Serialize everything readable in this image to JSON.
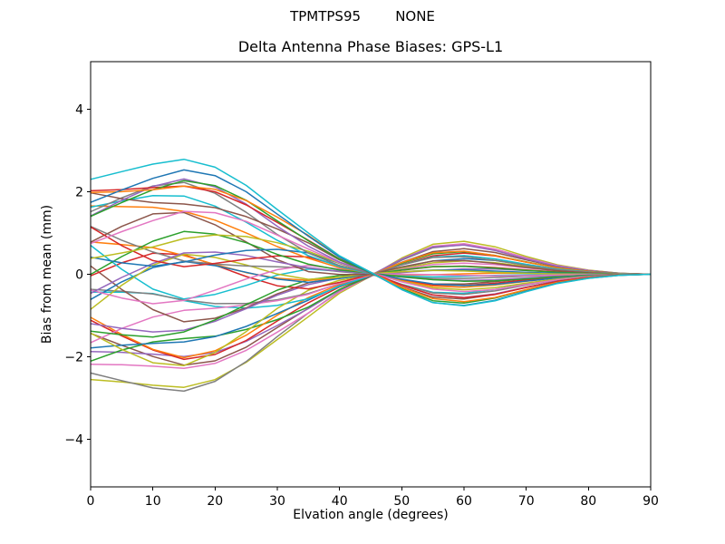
{
  "figure": {
    "background": "#ffffff",
    "axis_color": "#000000"
  },
  "chart_data": {
    "type": "line",
    "suptitle": "TPMTPS95        NONE",
    "title": "Delta Antenna Phase Biases: GPS-L1",
    "xlabel": "Elvation angle (degrees)",
    "ylabel": "Bias from mean (mm)",
    "xlim": [
      0,
      90
    ],
    "ylim": [
      -5.15,
      5.15
    ],
    "xticks": [
      0,
      10,
      20,
      30,
      40,
      50,
      60,
      70,
      80,
      90
    ],
    "xtick_labels": [
      "0",
      "10",
      "20",
      "30",
      "40",
      "50",
      "60",
      "70",
      "80",
      "90"
    ],
    "yticks": [
      -4,
      -2,
      0,
      2,
      4
    ],
    "ytick_labels": [
      "−4",
      "−2",
      "0",
      "2",
      "4"
    ],
    "grid": false,
    "legend": "none",
    "line_width": 1.5,
    "palette": [
      "#1f77b4",
      "#ff7f0e",
      "#2ca02c",
      "#d62728",
      "#9467bd",
      "#8c564b",
      "#e377c2",
      "#7f7f7f",
      "#bcbd22",
      "#17becf"
    ],
    "x": [
      0,
      5,
      10,
      15,
      20,
      25,
      30,
      35,
      40,
      45,
      50,
      55,
      60,
      65,
      70,
      75,
      80,
      85,
      90
    ],
    "value_formula": "values[j] = a*base[j] + n1*shape_u[j] + n2*shape_v[j] + n3*shape_w[j]; each of ~40 antenna bias curves peaks near 15 deg, crosses zero near 43 deg, has an opposite-sign bump near 55-60 deg and converges to 0 at 90 deg",
    "base": [
      0.84,
      0.92,
      1.0,
      1.06,
      1.0,
      0.84,
      0.62,
      0.4,
      0.18,
      0.02,
      -0.15,
      -0.28,
      -0.31,
      -0.26,
      -0.17,
      -0.09,
      -0.04,
      -0.01,
      0.0
    ],
    "shape_u": [
      1.0,
      0.8,
      0.62,
      0.42,
      0.28,
      0.16,
      0.08,
      0.03,
      0,
      0,
      0,
      0,
      0,
      0,
      0,
      0,
      0,
      0,
      0
    ],
    "shape_v": [
      0,
      0.5,
      0.9,
      1.0,
      0.75,
      0.4,
      0.05,
      -0.15,
      -0.1,
      0,
      0,
      0,
      0,
      0,
      0,
      0,
      0,
      0,
      0
    ],
    "shape_w": [
      0,
      0,
      0,
      0,
      0,
      0,
      0,
      0,
      0,
      0.05,
      0.25,
      0.4,
      0.35,
      0.22,
      0.12,
      0.05,
      0.02,
      0,
      0
    ],
    "envelope": {
      "start_at_0deg": [
        -2.55,
        2.3
      ],
      "peak_at_15deg": [
        -2.75,
        2.78
      ],
      "pinch_at_43deg": [
        -0.15,
        0.15
      ],
      "bump_at_57deg": [
        -0.9,
        0.8
      ],
      "end_at_90deg": [
        0.0,
        0.0
      ]
    },
    "series": [
      {
        "a": 2.5,
        "n1": 0.2,
        "n2": 0.05,
        "n3": 0.03,
        "c": "#17becf"
      },
      {
        "a": 2.37,
        "n1": -0.25,
        "n2": 0.12,
        "n3": -0.06,
        "c": "#1f77b4"
      },
      {
        "a": 2.24,
        "n1": 0.1,
        "n2": -0.28,
        "n3": 0.09,
        "c": "#ff7f0e"
      },
      {
        "a": 2.12,
        "n1": -0.38,
        "n2": 0.18,
        "n3": -0.12,
        "c": "#2ca02c"
      },
      {
        "a": 1.99,
        "n1": 0.35,
        "n2": -0.12,
        "n3": 0.14,
        "c": "#d62728"
      },
      {
        "a": 1.86,
        "n1": -0.15,
        "n2": 0.4,
        "n3": 0.04,
        "c": "#9467bd"
      },
      {
        "a": 1.73,
        "n1": 0.52,
        "n2": -0.35,
        "n3": -0.18,
        "c": "#8c564b"
      },
      {
        "a": 1.6,
        "n1": -0.6,
        "n2": 0.08,
        "n3": 0.22,
        "c": "#e377c2"
      },
      {
        "a": 1.47,
        "n1": 0.28,
        "n2": 0.55,
        "n3": -0.1,
        "c": "#7f7f7f"
      },
      {
        "a": 1.35,
        "n1": -0.75,
        "n2": -0.25,
        "n3": 0.12,
        "c": "#bcbd22"
      },
      {
        "a": 1.22,
        "n1": 0.6,
        "n2": 0.35,
        "n3": -0.24,
        "c": "#17becf"
      },
      {
        "a": 1.09,
        "n1": -0.5,
        "n2": -0.65,
        "n3": 0.18,
        "c": "#1f77b4"
      },
      {
        "a": 0.96,
        "n1": 0.85,
        "n2": 0.15,
        "n3": -0.05,
        "c": "#ff7f0e"
      },
      {
        "a": 0.83,
        "n1": -0.7,
        "n2": 0.45,
        "n3": 0.25,
        "c": "#2ca02c"
      },
      {
        "a": 0.71,
        "n1": 0.55,
        "n2": -0.8,
        "n3": -0.15,
        "c": "#d62728"
      },
      {
        "a": 0.58,
        "n1": -0.95,
        "n2": 0.3,
        "n3": 0.08,
        "c": "#9467bd"
      },
      {
        "a": 0.45,
        "n1": 0.4,
        "n2": 0.85,
        "n3": -0.28,
        "c": "#8c564b"
      },
      {
        "a": 0.32,
        "n1": -0.65,
        "n2": -0.7,
        "n3": 0.2,
        "c": "#e377c2"
      },
      {
        "a": 0.19,
        "n1": 1.0,
        "n2": -0.3,
        "n3": -0.12,
        "c": "#7f7f7f"
      },
      {
        "a": 0.06,
        "n1": -0.9,
        "n2": 0.8,
        "n3": 0.28,
        "c": "#bcbd22"
      },
      {
        "a": -0.06,
        "n1": 0.75,
        "n2": -0.85,
        "n3": -0.2,
        "c": "#17becf"
      },
      {
        "a": -0.19,
        "n1": -0.45,
        "n2": 0.7,
        "n3": 0.12,
        "c": "#1f77b4"
      },
      {
        "a": -0.32,
        "n1": 1.05,
        "n2": 0.35,
        "n3": -0.25,
        "c": "#ff7f0e"
      },
      {
        "a": -0.45,
        "n1": -1.0,
        "n2": -0.5,
        "n3": 0.15,
        "c": "#2ca02c"
      },
      {
        "a": -0.58,
        "n1": 0.45,
        "n2": 0.9,
        "n3": 0.05,
        "c": "#d62728"
      },
      {
        "a": -0.71,
        "n1": -0.6,
        "n2": -0.35,
        "n3": -0.26,
        "c": "#9467bd"
      },
      {
        "a": -0.83,
        "n1": 0.9,
        "n2": -0.65,
        "n3": 0.22,
        "c": "#8c564b"
      },
      {
        "a": -0.96,
        "n1": -0.85,
        "n2": 0.5,
        "n3": -0.08,
        "c": "#e377c2"
      },
      {
        "a": -1.09,
        "n1": 0.55,
        "n2": 0.3,
        "n3": 0.25,
        "c": "#7f7f7f"
      },
      {
        "a": -1.22,
        "n1": -0.4,
        "n2": -0.75,
        "n3": -0.16,
        "c": "#bcbd22"
      },
      {
        "a": -1.35,
        "n1": 0.7,
        "n2": 0.5,
        "n3": 0.1,
        "c": "#17becf"
      },
      {
        "a": -1.47,
        "n1": -0.55,
        "n2": 0.15,
        "n3": -0.22,
        "c": "#1f77b4"
      },
      {
        "a": -1.6,
        "n1": 0.3,
        "n2": -0.45,
        "n3": 0.18,
        "c": "#ff7f0e"
      },
      {
        "a": -1.73,
        "n1": -0.65,
        "n2": 0.55,
        "n3": 0.03,
        "c": "#2ca02c"
      },
      {
        "a": -1.86,
        "n1": 0.45,
        "n2": -0.28,
        "n3": -0.18,
        "c": "#d62728"
      },
      {
        "a": -1.99,
        "n1": -0.2,
        "n2": 0.2,
        "n3": 0.26,
        "c": "#9467bd"
      },
      {
        "a": -2.12,
        "n1": 0.35,
        "n2": -0.1,
        "n3": -0.11,
        "c": "#8c564b"
      },
      {
        "a": -2.24,
        "n1": -0.3,
        "n2": 0.22,
        "n3": 0.13,
        "c": "#e377c2"
      },
      {
        "a": -2.37,
        "n1": -0.4,
        "n2": -0.15,
        "n3": -0.05,
        "c": "#7f7f7f"
      },
      {
        "a": -2.5,
        "n1": -0.45,
        "n2": 0.1,
        "n3": 0.07,
        "c": "#bcbd22"
      }
    ]
  }
}
